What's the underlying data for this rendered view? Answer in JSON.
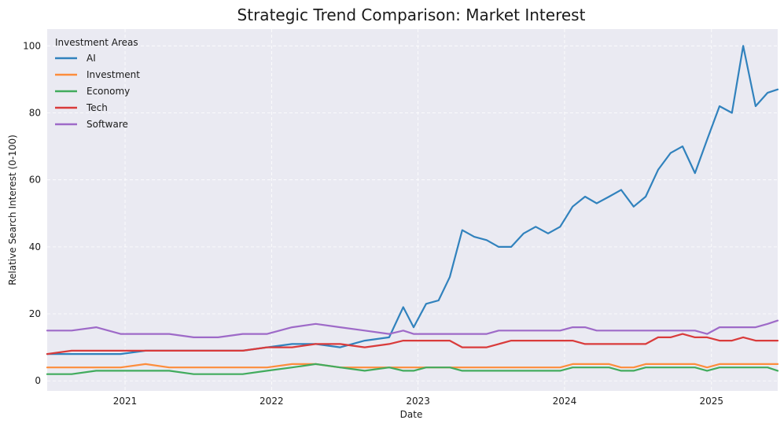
{
  "chart_data": {
    "type": "line",
    "title": "Strategic Trend Comparison: Market Interest",
    "xlabel": "Date",
    "ylabel": "Relative Search Interest (0-100)",
    "xlim": [
      "2020-06-21",
      "2025-06-15"
    ],
    "ylim": [
      -3,
      105
    ],
    "grid": true,
    "legend": {
      "title": "Investment Areas",
      "position": "top-left"
    },
    "x_ticks": [
      {
        "label": "2021",
        "date": "2021-01-01"
      },
      {
        "label": "2022",
        "date": "2022-01-01"
      },
      {
        "label": "2023",
        "date": "2023-01-01"
      },
      {
        "label": "2024",
        "date": "2024-01-01"
      },
      {
        "label": "2025",
        "date": "2025-01-01"
      }
    ],
    "y_ticks": [
      0,
      20,
      40,
      60,
      80,
      100
    ],
    "x": [
      "2020-06-21",
      "2020-08-21",
      "2020-10-21",
      "2020-12-21",
      "2021-02-21",
      "2021-04-21",
      "2021-06-21",
      "2021-08-21",
      "2021-10-21",
      "2021-12-21",
      "2022-02-21",
      "2022-04-21",
      "2022-06-21",
      "2022-08-21",
      "2022-10-21",
      "2022-11-25",
      "2022-12-21",
      "2023-01-21",
      "2023-02-21",
      "2023-03-21",
      "2023-04-21",
      "2023-05-21",
      "2023-06-21",
      "2023-07-21",
      "2023-08-21",
      "2023-09-21",
      "2023-10-21",
      "2023-11-21",
      "2023-12-21",
      "2024-01-21",
      "2024-02-21",
      "2024-03-21",
      "2024-04-21",
      "2024-05-21",
      "2024-06-21",
      "2024-07-21",
      "2024-08-21",
      "2024-09-21",
      "2024-10-21",
      "2024-11-21",
      "2024-12-21",
      "2025-01-21",
      "2025-02-21",
      "2025-03-21",
      "2025-04-21",
      "2025-05-21",
      "2025-06-15"
    ],
    "series": [
      {
        "name": "AI",
        "color": "#3182bd",
        "values": [
          8,
          8,
          8,
          8,
          9,
          9,
          9,
          9,
          9,
          10,
          11,
          11,
          10,
          12,
          13,
          22,
          16,
          23,
          24,
          31,
          45,
          43,
          42,
          40,
          40,
          44,
          46,
          44,
          46,
          52,
          55,
          53,
          55,
          57,
          52,
          55,
          63,
          68,
          70,
          62,
          72,
          82,
          80,
          100,
          82,
          86,
          87
        ]
      },
      {
        "name": "Investment",
        "color": "#fd8d3c",
        "values": [
          4,
          4,
          4,
          4,
          5,
          4,
          4,
          4,
          4,
          4,
          5,
          5,
          4,
          4,
          4,
          4,
          4,
          4,
          4,
          4,
          4,
          4,
          4,
          4,
          4,
          4,
          4,
          4,
          4,
          5,
          5,
          5,
          5,
          4,
          4,
          5,
          5,
          5,
          5,
          5,
          4,
          5,
          5,
          5,
          5,
          5,
          5
        ]
      },
      {
        "name": "Economy",
        "color": "#41ab5d",
        "values": [
          2,
          2,
          3,
          3,
          3,
          3,
          2,
          2,
          2,
          3,
          4,
          5,
          4,
          3,
          4,
          3,
          3,
          4,
          4,
          4,
          3,
          3,
          3,
          3,
          3,
          3,
          3,
          3,
          3,
          4,
          4,
          4,
          4,
          3,
          3,
          4,
          4,
          4,
          4,
          4,
          3,
          4,
          4,
          4,
          4,
          4,
          3
        ]
      },
      {
        "name": "Tech",
        "color": "#d93b3b",
        "values": [
          8,
          9,
          9,
          9,
          9,
          9,
          9,
          9,
          9,
          10,
          10,
          11,
          11,
          10,
          11,
          12,
          12,
          12,
          12,
          12,
          10,
          10,
          10,
          11,
          12,
          12,
          12,
          12,
          12,
          12,
          11,
          11,
          11,
          11,
          11,
          11,
          13,
          13,
          14,
          13,
          13,
          12,
          12,
          13,
          12,
          12,
          12
        ]
      },
      {
        "name": "Software",
        "color": "#9e6ac8",
        "values": [
          15,
          15,
          16,
          14,
          14,
          14,
          13,
          13,
          14,
          14,
          16,
          17,
          16,
          15,
          14,
          15,
          14,
          14,
          14,
          14,
          14,
          14,
          14,
          15,
          15,
          15,
          15,
          15,
          15,
          16,
          16,
          15,
          15,
          15,
          15,
          15,
          15,
          15,
          15,
          15,
          14,
          16,
          16,
          16,
          16,
          17,
          18
        ]
      }
    ]
  }
}
